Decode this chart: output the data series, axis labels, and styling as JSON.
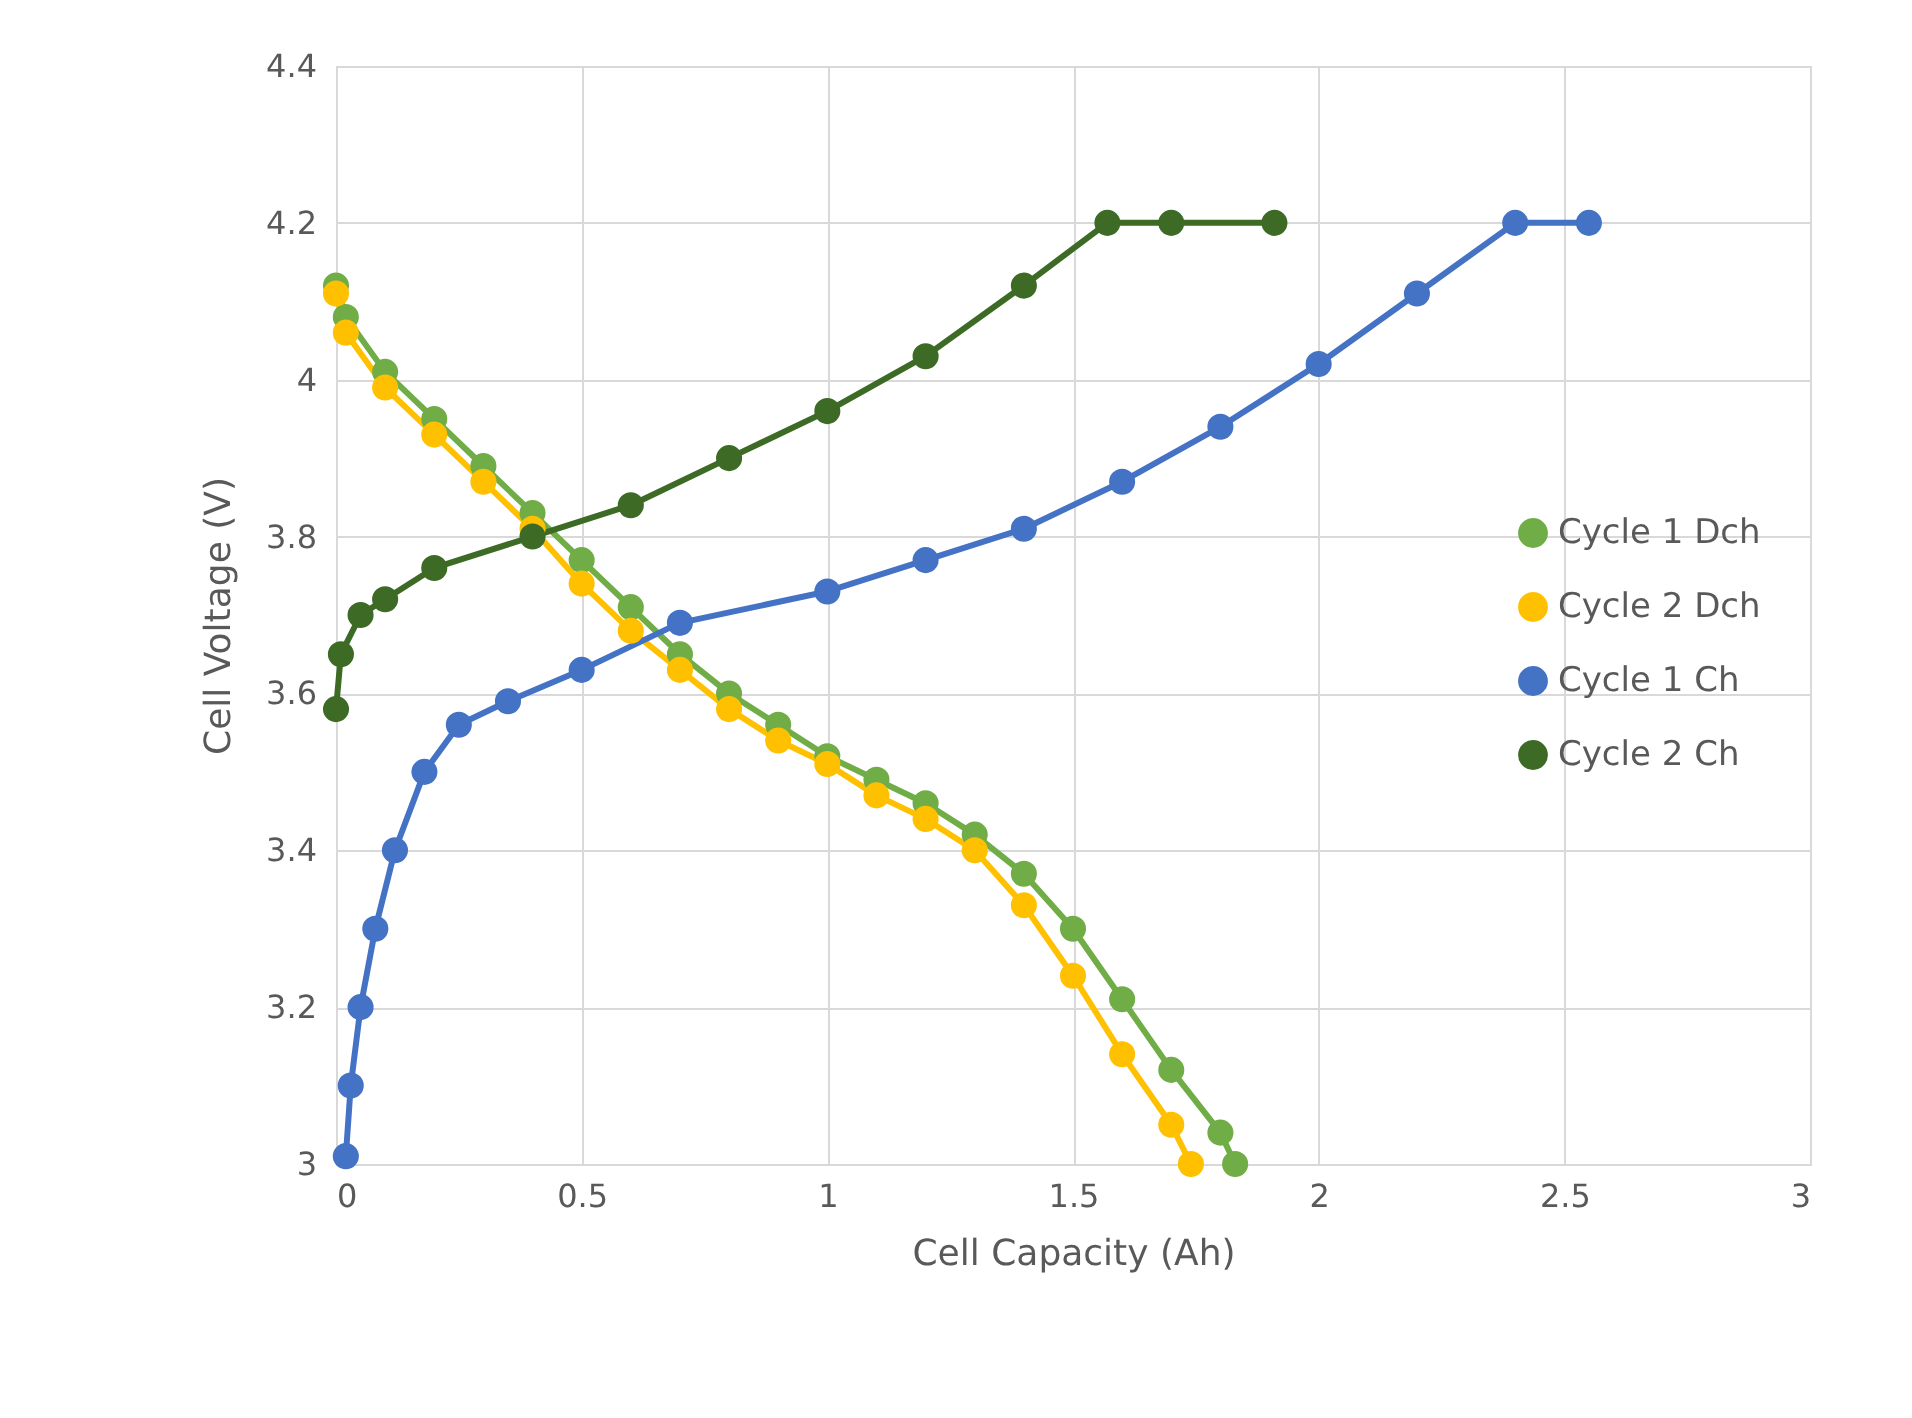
{
  "chart_data": {
    "type": "line",
    "xlabel": "Cell Capacity (Ah)",
    "ylabel": "Cell Voltage (V)",
    "xlim": [
      0,
      3
    ],
    "xticks": [
      0,
      0.5,
      1,
      1.5,
      2,
      2.5,
      3
    ],
    "ylim": [
      3,
      4.4
    ],
    "yticks": [
      3,
      3.2,
      3.4,
      3.6,
      3.8,
      4,
      4.2,
      4.4
    ],
    "grid": true,
    "legend": "right",
    "marker": "circle",
    "line_style": "solid",
    "series": [
      {
        "name": "Cycle 1 Dch",
        "color": "#70ad47",
        "x": [
          0,
          0.02,
          0.1,
          0.2,
          0.3,
          0.4,
          0.5,
          0.6,
          0.7,
          0.8,
          0.9,
          1.0,
          1.1,
          1.2,
          1.3,
          1.4,
          1.5,
          1.6,
          1.7,
          1.8,
          1.83
        ],
        "values": [
          4.12,
          4.08,
          4.01,
          3.95,
          3.89,
          3.83,
          3.77,
          3.71,
          3.65,
          3.6,
          3.56,
          3.52,
          3.49,
          3.46,
          3.42,
          3.37,
          3.3,
          3.21,
          3.12,
          3.04,
          3.0
        ]
      },
      {
        "name": "Cycle 2 Dch",
        "color": "#ffc000",
        "x": [
          0,
          0.02,
          0.1,
          0.2,
          0.3,
          0.4,
          0.5,
          0.6,
          0.7,
          0.8,
          0.9,
          1.0,
          1.1,
          1.2,
          1.3,
          1.4,
          1.5,
          1.6,
          1.7,
          1.74
        ],
        "values": [
          4.11,
          4.06,
          3.99,
          3.93,
          3.87,
          3.81,
          3.74,
          3.68,
          3.63,
          3.58,
          3.54,
          3.51,
          3.47,
          3.44,
          3.4,
          3.33,
          3.24,
          3.14,
          3.05,
          3.0
        ]
      },
      {
        "name": "Cycle 1 Ch",
        "color": "#4472c4",
        "x": [
          0.02,
          0.03,
          0.05,
          0.08,
          0.12,
          0.18,
          0.25,
          0.35,
          0.5,
          0.7,
          1.0,
          1.2,
          1.4,
          1.6,
          1.8,
          2.0,
          2.2,
          2.4,
          2.55
        ],
        "values": [
          3.01,
          3.1,
          3.2,
          3.3,
          3.4,
          3.5,
          3.56,
          3.59,
          3.63,
          3.69,
          3.73,
          3.77,
          3.81,
          3.87,
          3.94,
          4.02,
          4.11,
          4.2,
          4.2
        ]
      },
      {
        "name": "Cycle 2 Ch",
        "color": "#3d6b25",
        "x": [
          0,
          0.01,
          0.05,
          0.1,
          0.2,
          0.4,
          0.6,
          0.8,
          1.0,
          1.2,
          1.4,
          1.57,
          1.7,
          1.91
        ],
        "values": [
          3.58,
          3.65,
          3.7,
          3.72,
          3.76,
          3.8,
          3.84,
          3.9,
          3.96,
          4.03,
          4.12,
          4.2,
          4.2,
          4.2
        ]
      }
    ]
  }
}
